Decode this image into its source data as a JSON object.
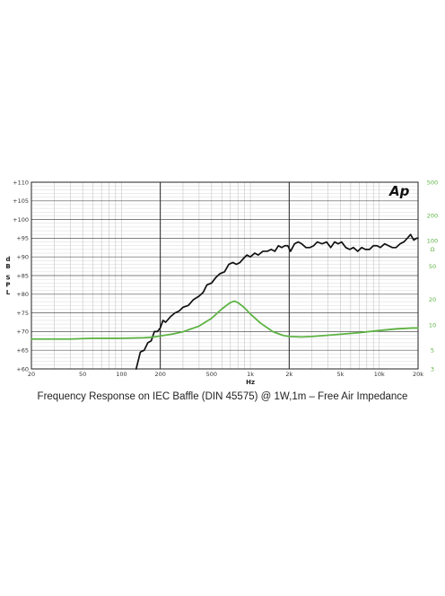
{
  "caption": "Frequency Response on IEC Baffle (DIN 45575) @ 1W,1m – Free Air Impedance",
  "logo_text": "Ap",
  "chart_data": {
    "type": "line",
    "title": "",
    "xlabel": "Hz",
    "ylabel": "dB SPL",
    "y2label": "Ω",
    "x_scale": "log",
    "xlim": [
      20,
      20000
    ],
    "ylim": [
      60,
      110
    ],
    "y2_scale": "log",
    "y2lim": [
      3,
      500
    ],
    "grid": true,
    "x_ticks": [
      {
        "v": 20,
        "label": "20"
      },
      {
        "v": 50,
        "label": "50"
      },
      {
        "v": 100,
        "label": "100"
      },
      {
        "v": 200,
        "label": "200"
      },
      {
        "v": 500,
        "label": "500"
      },
      {
        "v": 1000,
        "label": "1k"
      },
      {
        "v": 2000,
        "label": "2k"
      },
      {
        "v": 5000,
        "label": "5k"
      },
      {
        "v": 10000,
        "label": "10k"
      },
      {
        "v": 20000,
        "label": "20k"
      }
    ],
    "y_ticks": [
      {
        "v": 60,
        "label": "+60"
      },
      {
        "v": 65,
        "label": "+65"
      },
      {
        "v": 70,
        "label": "+70"
      },
      {
        "v": 75,
        "label": "+75"
      },
      {
        "v": 80,
        "label": "+80"
      },
      {
        "v": 85,
        "label": "+85"
      },
      {
        "v": 90,
        "label": "+90"
      },
      {
        "v": 95,
        "label": "+95"
      },
      {
        "v": 100,
        "label": "+100"
      },
      {
        "v": 105,
        "label": "+105"
      },
      {
        "v": 110,
        "label": "+110"
      }
    ],
    "y2_ticks": [
      {
        "v": 3,
        "label": "3"
      },
      {
        "v": 5,
        "label": "5"
      },
      {
        "v": 10,
        "label": "10"
      },
      {
        "v": 20,
        "label": "20"
      },
      {
        "v": 50,
        "label": "50"
      },
      {
        "v": 100,
        "label": "100"
      },
      {
        "v": 200,
        "label": "200"
      },
      {
        "v": 500,
        "label": "500"
      }
    ],
    "colors": {
      "spl": "#111111",
      "impedance": "#5db343"
    },
    "series": [
      {
        "axis": "left",
        "color": "#111111",
        "points": [
          [
            130,
            59
          ],
          [
            140,
            64.5
          ],
          [
            150,
            65
          ],
          [
            160,
            67
          ],
          [
            170,
            67.5
          ],
          [
            180,
            70
          ],
          [
            190,
            70
          ],
          [
            200,
            71
          ],
          [
            210,
            73
          ],
          [
            220,
            72.5
          ],
          [
            240,
            74
          ],
          [
            260,
            75
          ],
          [
            280,
            75.5
          ],
          [
            300,
            76.5
          ],
          [
            330,
            77
          ],
          [
            360,
            78.5
          ],
          [
            400,
            79.5
          ],
          [
            430,
            80.5
          ],
          [
            460,
            82.5
          ],
          [
            500,
            83
          ],
          [
            540,
            84.5
          ],
          [
            580,
            85.5
          ],
          [
            630,
            86
          ],
          [
            680,
            88
          ],
          [
            730,
            88.5
          ],
          [
            780,
            88
          ],
          [
            830,
            88.5
          ],
          [
            880,
            89.5
          ],
          [
            940,
            90.5
          ],
          [
            1000,
            90
          ],
          [
            1080,
            91
          ],
          [
            1150,
            90.5
          ],
          [
            1250,
            91.5
          ],
          [
            1350,
            91.5
          ],
          [
            1450,
            92
          ],
          [
            1550,
            91.5
          ],
          [
            1650,
            93
          ],
          [
            1750,
            92.5
          ],
          [
            1850,
            93
          ],
          [
            1950,
            93
          ],
          [
            2050,
            91.5
          ],
          [
            2200,
            93.5
          ],
          [
            2350,
            94
          ],
          [
            2500,
            93.5
          ],
          [
            2700,
            92.5
          ],
          [
            2900,
            92.5
          ],
          [
            3100,
            93
          ],
          [
            3300,
            94
          ],
          [
            3600,
            93.5
          ],
          [
            3900,
            94
          ],
          [
            4200,
            92.5
          ],
          [
            4500,
            94
          ],
          [
            4800,
            93.5
          ],
          [
            5100,
            94
          ],
          [
            5500,
            92.5
          ],
          [
            5900,
            92
          ],
          [
            6300,
            92.5
          ],
          [
            6800,
            91.5
          ],
          [
            7300,
            92.5
          ],
          [
            7800,
            92
          ],
          [
            8400,
            92
          ],
          [
            9000,
            93
          ],
          [
            9600,
            93
          ],
          [
            10200,
            92.5
          ],
          [
            11000,
            93.5
          ],
          [
            11800,
            93
          ],
          [
            12600,
            92.5
          ],
          [
            13500,
            92.5
          ],
          [
            14500,
            93.5
          ],
          [
            15500,
            94
          ],
          [
            16500,
            95
          ],
          [
            17500,
            96
          ],
          [
            18500,
            94.5
          ],
          [
            19500,
            95
          ],
          [
            20000,
            95
          ]
        ]
      },
      {
        "axis": "right",
        "color": "#5db343",
        "points": [
          [
            20,
            6.8
          ],
          [
            40,
            6.8
          ],
          [
            60,
            6.95
          ],
          [
            100,
            6.95
          ],
          [
            150,
            7.05
          ],
          [
            180,
            7.2
          ],
          [
            200,
            7.4
          ],
          [
            250,
            7.8
          ],
          [
            300,
            8.3
          ],
          [
            400,
            9.7
          ],
          [
            500,
            12
          ],
          [
            600,
            15.5
          ],
          [
            700,
            18.5
          ],
          [
            750,
            19.2
          ],
          [
            800,
            18.5
          ],
          [
            900,
            16
          ],
          [
            1000,
            13.5
          ],
          [
            1200,
            10.5
          ],
          [
            1500,
            8.3
          ],
          [
            1800,
            7.5
          ],
          [
            2000,
            7.3
          ],
          [
            2500,
            7.2
          ],
          [
            3000,
            7.3
          ],
          [
            4000,
            7.55
          ],
          [
            5000,
            7.75
          ],
          [
            7000,
            8.1
          ],
          [
            10000,
            8.6
          ],
          [
            14000,
            9.0
          ],
          [
            18000,
            9.2
          ],
          [
            20000,
            9.2
          ]
        ]
      }
    ]
  }
}
